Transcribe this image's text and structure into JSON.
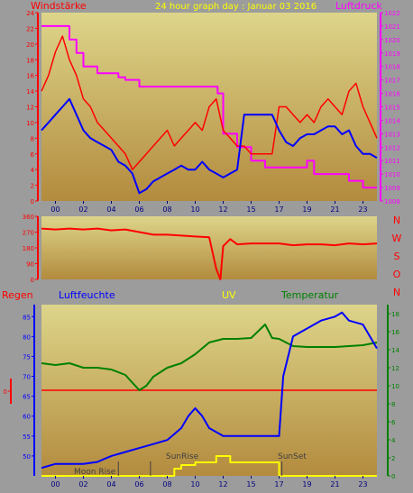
{
  "window": {
    "title": "24 hour graph day : Januar 03 2016"
  },
  "colors": {
    "background": "#9c9c9c",
    "plot_top": "#ddd58a",
    "plot_bottom": "#b38b3e",
    "wind_gust": "#ff0000",
    "wind_avg": "#0000ff",
    "pressure": "#ff00ff",
    "direction": "#ff0000",
    "rain": "#ff0000",
    "humidity": "#0000ff",
    "uv": "#ffff00",
    "temperature": "#008000",
    "sun_markers": "#404040"
  },
  "labels": {
    "wind": "Windstärke",
    "pressure": "Luftdruck",
    "rain": "Regen",
    "humidity": "Luftfeuchte",
    "uv": "UV",
    "temperature": "Temperatur",
    "sunrise": "SunRise",
    "sunset": "SunSet",
    "moonrise": "Moon Rise",
    "compass": [
      "N",
      "W",
      "S",
      "O",
      "N"
    ]
  },
  "chart_data": [
    {
      "type": "line",
      "title": "24 hour graph day : Januar 03 2016",
      "xlabel": "",
      "x_ticks": [
        "00",
        "02",
        "04",
        "06",
        "08",
        "10",
        "12",
        "15",
        "17",
        "19",
        "21",
        "23"
      ],
      "left_axis": {
        "label": "Windstärke",
        "ticks": [
          0,
          2,
          4,
          6,
          8,
          10,
          12,
          14,
          16,
          18,
          20,
          22,
          24
        ],
        "ylim": [
          0,
          24
        ]
      },
      "right_axis": {
        "label": "Luftdruck",
        "ticks": [
          1008,
          1009,
          1010,
          1011,
          1012,
          1013,
          1014,
          1015,
          1016,
          1017,
          1018,
          1019,
          1020,
          1021,
          1022
        ],
        "ylim": [
          1008,
          1022
        ]
      },
      "grid": false,
      "series": [
        {
          "name": "Windstärke",
          "role": "gust",
          "x": [
            0,
            0.5,
            1,
            1.5,
            2,
            2.5,
            3,
            3.5,
            4,
            4.5,
            5,
            5.5,
            6,
            6.5,
            7,
            7.5,
            8,
            8.5,
            9,
            9.5,
            10,
            10.5,
            11,
            11.5,
            12,
            12.5,
            13,
            13.5,
            14,
            14.5,
            15,
            15.5,
            16,
            16.5,
            17,
            17.5,
            18,
            18.5,
            19,
            19.5,
            20,
            20.5,
            21,
            21.5,
            22,
            22.5,
            23,
            23.5,
            24
          ],
          "values": [
            14,
            16,
            19,
            21,
            18,
            16,
            13,
            12,
            10,
            9,
            8,
            7,
            6,
            4,
            5,
            6,
            7,
            8,
            9,
            7,
            8,
            9,
            10,
            9,
            12,
            13,
            9,
            8,
            7,
            7,
            6,
            6,
            6,
            6,
            12,
            12,
            11,
            10,
            11,
            10,
            12,
            13,
            12,
            11,
            14,
            15,
            12,
            10,
            8
          ]
        },
        {
          "name": "",
          "role": "average",
          "x": [
            0,
            0.5,
            1,
            1.5,
            2,
            2.5,
            3,
            3.5,
            4,
            4.5,
            5,
            5.5,
            6,
            6.5,
            7,
            7.5,
            8,
            8.5,
            9,
            9.5,
            10,
            10.5,
            11,
            11.5,
            12,
            12.5,
            13,
            13.5,
            14,
            14.5,
            15,
            15.5,
            16,
            16.5,
            17,
            17.5,
            18,
            18.5,
            19,
            19.5,
            20,
            20.5,
            21,
            21.5,
            22,
            22.5,
            23,
            23.5,
            24
          ],
          "values": [
            9,
            10,
            11,
            12,
            13,
            11,
            9,
            8,
            7.5,
            7,
            6.5,
            5,
            4.5,
            3.5,
            1,
            1.5,
            2.5,
            3,
            3.5,
            4,
            4.5,
            4,
            4,
            5,
            4,
            3.5,
            3,
            3.5,
            4,
            11,
            11,
            11,
            11,
            11,
            9,
            7.5,
            7,
            8,
            8.5,
            8.5,
            9,
            9.5,
            9.5,
            8.5,
            9,
            7,
            6,
            6,
            5.5
          ]
        },
        {
          "name": "Luftdruck",
          "axis": "right",
          "x": [
            0,
            1,
            2,
            2.5,
            3,
            3.5,
            4,
            4.5,
            5,
            5.5,
            6,
            6.5,
            7,
            8,
            9,
            10,
            11,
            12,
            12.3,
            12.6,
            13,
            14,
            15,
            16,
            17,
            18,
            18.5,
            19,
            19.5,
            20,
            21,
            22,
            23,
            23.5,
            24
          ],
          "values": [
            1021,
            1021,
            1020,
            1019,
            1018,
            1018,
            1017.5,
            1017.5,
            1017.5,
            1017.2,
            1017,
            1017,
            1016.5,
            1016.5,
            1016.5,
            1016.5,
            1016.5,
            1016.5,
            1016.5,
            1016,
            1013,
            1012,
            1011,
            1010.5,
            1010.5,
            1010.5,
            1010.5,
            1011,
            1010,
            1010,
            1010,
            1009.5,
            1009,
            1009,
            1009
          ]
        }
      ]
    },
    {
      "type": "line",
      "title": "",
      "y_ticks": [
        0,
        90,
        180,
        270,
        360
      ],
      "ylim": [
        0,
        360
      ],
      "grid": false,
      "series": [
        {
          "name": "",
          "x": [
            0,
            1,
            2,
            3,
            4,
            5,
            6,
            7,
            8,
            9,
            10,
            11,
            12,
            12.5,
            12.8,
            13,
            13.5,
            14,
            15,
            16,
            17,
            18,
            19,
            20,
            21,
            22,
            23,
            24
          ],
          "values": [
            290,
            285,
            290,
            285,
            290,
            280,
            285,
            270,
            255,
            255,
            250,
            245,
            240,
            60,
            0,
            190,
            230,
            200,
            205,
            205,
            205,
            195,
            200,
            200,
            195,
            205,
            200,
            205
          ]
        }
      ]
    },
    {
      "type": "line",
      "title": "",
      "left_axis": {
        "label": "Luftfeuchte",
        "ticks": [
          50,
          55,
          60,
          65,
          70,
          75,
          80,
          85
        ],
        "ylim": [
          45,
          88
        ]
      },
      "rain_axis": {
        "label": "Regen",
        "ticks": [
          0
        ],
        "ylim": [
          -3,
          3
        ]
      },
      "right_axis": {
        "label": "Temperatur",
        "ticks": [
          0,
          2,
          4,
          6,
          8,
          10,
          12,
          14,
          16,
          18
        ],
        "ylim": [
          0,
          19
        ]
      },
      "x_ticks": [
        "00",
        "02",
        "04",
        "06",
        "08",
        "10",
        "12",
        "15",
        "17",
        "19",
        "21",
        "23"
      ],
      "annotations": [
        "SunRise",
        "SunSet",
        "Moon Rise"
      ],
      "grid": false,
      "series": [
        {
          "name": "Regen",
          "axis": "rain",
          "x": [
            0,
            24
          ],
          "values": [
            0,
            0
          ]
        },
        {
          "name": "Luftfeuchte",
          "axis": "left",
          "x": [
            0,
            1,
            2,
            3,
            4,
            5,
            6,
            7,
            8,
            9,
            10,
            10.5,
            11,
            11.5,
            12,
            12.5,
            13,
            14,
            15,
            16,
            17,
            17.3,
            18,
            19,
            20,
            21,
            21.5,
            22,
            23,
            24
          ],
          "values": [
            47,
            48,
            48,
            48,
            48.5,
            50,
            51,
            52,
            53,
            54,
            57,
            60,
            62,
            60,
            57,
            56,
            55,
            55,
            55,
            55,
            55,
            70,
            80,
            82,
            84,
            85,
            86,
            84,
            83,
            77
          ]
        },
        {
          "name": "Temperatur",
          "axis": "right",
          "x": [
            0,
            1,
            2,
            3,
            4,
            5,
            6,
            7,
            7.5,
            8,
            9,
            10,
            11,
            12,
            13,
            14,
            15,
            16,
            16.5,
            17,
            18,
            19,
            20,
            21,
            22,
            23,
            24
          ],
          "values": [
            12.5,
            12.3,
            12.5,
            12,
            12,
            11.8,
            11.2,
            9.5,
            10,
            11,
            12,
            12.5,
            13.5,
            14.8,
            15.2,
            15.2,
            15.3,
            16.8,
            15.3,
            15.2,
            14.4,
            14.3,
            14.3,
            14.3,
            14.4,
            14.5,
            14.8
          ]
        },
        {
          "name": "UV",
          "axis": "right",
          "x": [
            0,
            9,
            9.5,
            10,
            11,
            12,
            12.5,
            13,
            13.5,
            14,
            15,
            16,
            17,
            24
          ],
          "values": [
            0,
            0,
            0.8,
            1.2,
            1.5,
            1.5,
            2.2,
            2.2,
            1.5,
            1.5,
            1.5,
            1.5,
            0,
            0
          ]
        }
      ]
    }
  ]
}
